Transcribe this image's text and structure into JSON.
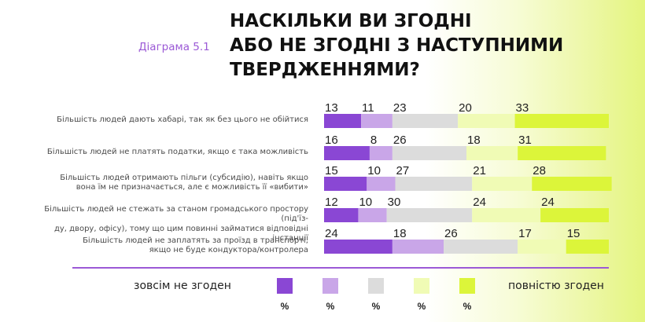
{
  "header": {
    "subtitle": "Діаграма 5.1",
    "title_lines": [
      "НАСКІЛЬКИ ВИ ЗГОДНІ",
      "АБО НЕ ЗГОДНІ З НАСТУПНИМИ",
      "ТВЕРДЖЕННЯМИ?"
    ]
  },
  "colors": {
    "scale": [
      "#8a47d4",
      "#c9a6e8",
      "#dcdcdc",
      "#f0fbb5",
      "#dcf53a"
    ],
    "divider": "#9b59d6"
  },
  "legend": {
    "left_label": "зовсім не згоден",
    "right_label": "повністю згоден",
    "unit_labels": [
      "%",
      "%",
      "%",
      "%",
      "%"
    ]
  },
  "chart_data": {
    "type": "bar",
    "orientation": "horizontal-stacked",
    "unit": "%",
    "categories": [
      [
        "Більшість людей дають хабарі, так як без цього не обійтися"
      ],
      [
        "Більшість людей не платять податки, якщо є така можливість"
      ],
      [
        "Більшість людей отримають пільги (субсидію), навіть якщо",
        "вона їм не призначається, але є можливість її «вибити»"
      ],
      [
        "Більшість людей не стежать за станом громадського простору (під'їз-",
        "ду, двору, офісу), тому що цим повинні займатися відповідні інстанції"
      ],
      [
        "Більшість людей не заплатять за проїзд в транспорті,",
        "якщо не буде кондуктора/контролера"
      ]
    ],
    "series": [
      {
        "name": "зовсім не згоден",
        "values": [
          13,
          16,
          15,
          12,
          24
        ]
      },
      {
        "name": "",
        "values": [
          11,
          8,
          10,
          10,
          18
        ]
      },
      {
        "name": "",
        "values": [
          23,
          26,
          27,
          30,
          26
        ]
      },
      {
        "name": "",
        "values": [
          20,
          18,
          21,
          24,
          17
        ]
      },
      {
        "name": "повністю згоден",
        "values": [
          33,
          31,
          28,
          24,
          15
        ]
      }
    ]
  }
}
